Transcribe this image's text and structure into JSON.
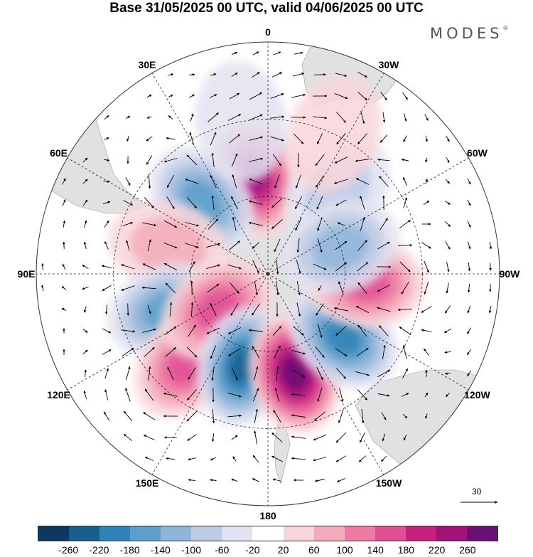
{
  "title": "Base 31/05/2025 00 UTC, valid 04/06/2025 00 UTC",
  "brand": "MODES",
  "brand_mark": "®",
  "longitude_labels": [
    {
      "text": "0",
      "lon": 0
    },
    {
      "text": "30E",
      "lon": 30
    },
    {
      "text": "60E",
      "lon": 60
    },
    {
      "text": "90E",
      "lon": 90
    },
    {
      "text": "120E",
      "lon": 120
    },
    {
      "text": "150E",
      "lon": 150
    },
    {
      "text": "180",
      "lon": 180
    },
    {
      "text": "150W",
      "lon": -150
    },
    {
      "text": "120W",
      "lon": -120
    },
    {
      "text": "90W",
      "lon": -90
    },
    {
      "text": "60W",
      "lon": -60
    },
    {
      "text": "30W",
      "lon": -30
    }
  ],
  "reference_vector": {
    "value": "30"
  },
  "colorbar": {
    "colors": [
      "#0b3a5e",
      "#15608f",
      "#2f83b9",
      "#5c9fcb",
      "#8fb6da",
      "#bdcbe6",
      "#e2e3f1",
      "#ffffff",
      "#f9d6da",
      "#f4abbb",
      "#ef7aa4",
      "#e04f92",
      "#c6217f",
      "#a0137a",
      "#6b1075"
    ],
    "ticks": [
      "-260",
      "-220",
      "-180",
      "-140",
      "-100",
      "-60",
      "-20",
      "20",
      "60",
      "100",
      "140",
      "180",
      "220",
      "260"
    ]
  },
  "anomaly_centers": [
    {
      "lon": 8,
      "lat": -52,
      "value": 230
    },
    {
      "lon": 42,
      "lat": -52,
      "value": -160
    },
    {
      "lon": -40,
      "lat": -48,
      "value": -70
    },
    {
      "lon": 75,
      "lat": -50,
      "value": 80
    },
    {
      "lon": 110,
      "lat": -48,
      "value": -140
    },
    {
      "lon": 138,
      "lat": -43,
      "value": 160
    },
    {
      "lon": 125,
      "lat": -66,
      "value": 140
    },
    {
      "lon": 165,
      "lat": -53,
      "value": -250
    },
    {
      "lon": -165,
      "lat": -50,
      "value": 260
    },
    {
      "lon": -130,
      "lat": -52,
      "value": -200
    },
    {
      "lon": -95,
      "lat": -52,
      "value": 150
    },
    {
      "lon": -70,
      "lat": -60,
      "value": -120
    },
    {
      "lon": -25,
      "lat": -30,
      "value": 50
    },
    {
      "lon": 10,
      "lat": -30,
      "value": -30
    }
  ]
}
